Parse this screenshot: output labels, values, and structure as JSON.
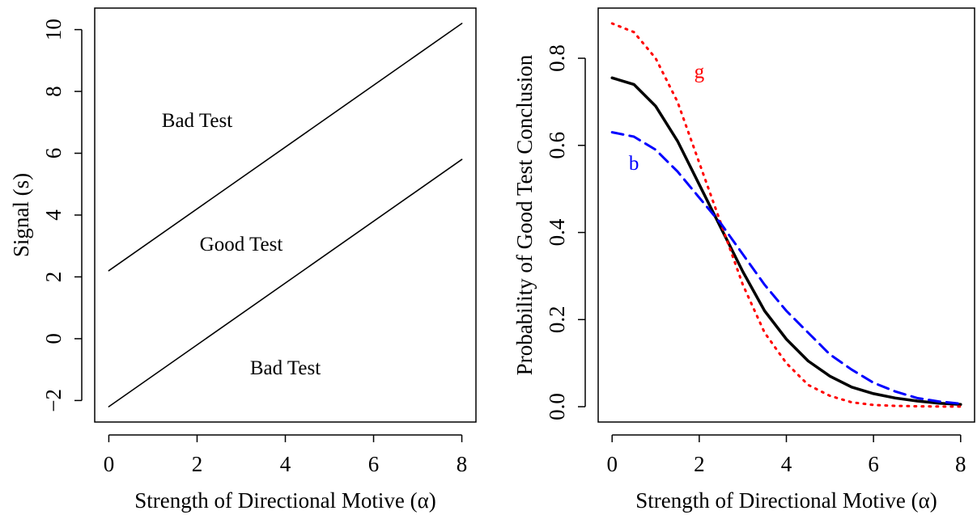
{
  "colors": {
    "axis": "#000000",
    "solid": "#000000",
    "good_test_dotted": "#ff0000",
    "bad_test_dashed": "#0000ff"
  },
  "chart_data": [
    {
      "type": "line",
      "title": "",
      "xlabel": "Strength of Directional Motive (α)",
      "ylabel": "Signal (s)",
      "xlim": [
        0,
        8
      ],
      "ylim": [
        -2.2,
        10.2
      ],
      "x_ticks": [
        0,
        2,
        4,
        6,
        8
      ],
      "x_tick_labels": [
        "0",
        "2",
        "4",
        "6",
        "8"
      ],
      "y_ticks": [
        -2,
        0,
        2,
        4,
        6,
        8,
        10
      ],
      "y_tick_labels": [
        "−2",
        "0",
        "2",
        "4",
        "6",
        "8",
        "10"
      ],
      "grid": false,
      "legend": "none",
      "series": [
        {
          "style": "solid",
          "color": "#000000",
          "x": [
            0,
            8
          ],
          "y": [
            2.2,
            10.2
          ]
        },
        {
          "style": "solid",
          "color": "#000000",
          "x": [
            0,
            8
          ],
          "y": [
            -2.2,
            5.8
          ]
        }
      ],
      "annotations": [
        {
          "text": "Bad Test",
          "x": 2,
          "y": 7,
          "color": "#000000"
        },
        {
          "text": "Good Test",
          "x": 3,
          "y": 3,
          "color": "#000000"
        },
        {
          "text": "Bad Test",
          "x": 4,
          "y": -1,
          "color": "#000000"
        }
      ]
    },
    {
      "type": "line",
      "title": "",
      "xlabel": "Strength of Directional Motive (α)",
      "ylabel": "Probability of Good Test Conclusion",
      "xlim": [
        0,
        8
      ],
      "ylim": [
        0,
        0.88
      ],
      "x_ticks": [
        0,
        2,
        4,
        6,
        8
      ],
      "x_tick_labels": [
        "0",
        "2",
        "4",
        "6",
        "8"
      ],
      "y_ticks": [
        0,
        0.2,
        0.4,
        0.6,
        0.8
      ],
      "y_tick_labels": [
        "0.0",
        "0.2",
        "0.4",
        "0.6",
        "0.8"
      ],
      "grid": false,
      "legend": "none",
      "series": [
        {
          "style": "solid",
          "color": "#000000",
          "x": [
            0,
            0.5,
            1,
            1.5,
            2,
            2.5,
            3,
            3.5,
            4,
            4.5,
            5,
            5.5,
            6,
            6.5,
            7,
            7.5,
            8
          ],
          "y": [
            0.755,
            0.74,
            0.69,
            0.61,
            0.51,
            0.41,
            0.31,
            0.22,
            0.155,
            0.105,
            0.07,
            0.045,
            0.03,
            0.02,
            0.013,
            0.008,
            0.005
          ]
        },
        {
          "style": "dotted",
          "color": "#ff0000",
          "x": [
            0,
            0.5,
            1,
            1.5,
            2,
            2.5,
            3,
            3.5,
            4,
            4.5,
            5,
            5.5,
            6,
            6.5,
            7,
            7.5,
            8
          ],
          "y": [
            0.88,
            0.86,
            0.8,
            0.7,
            0.56,
            0.42,
            0.28,
            0.17,
            0.1,
            0.05,
            0.025,
            0.01,
            0.004,
            0.002,
            0.001,
            0.0005,
            0.0003
          ]
        },
        {
          "style": "dashed",
          "color": "#0000ff",
          "x": [
            0,
            0.5,
            1,
            1.5,
            2,
            2.5,
            3,
            3.5,
            4,
            4.5,
            5,
            5.5,
            6,
            6.5,
            7,
            7.5,
            8
          ],
          "y": [
            0.63,
            0.62,
            0.59,
            0.54,
            0.48,
            0.42,
            0.35,
            0.28,
            0.22,
            0.17,
            0.12,
            0.085,
            0.055,
            0.035,
            0.02,
            0.012,
            0.007
          ]
        }
      ],
      "annotations": [
        {
          "text": "g",
          "x": 2.0,
          "y": 0.765,
          "color": "#ff0000"
        },
        {
          "text": "b",
          "x": 0.5,
          "y": 0.555,
          "color": "#0000ff"
        }
      ]
    }
  ]
}
